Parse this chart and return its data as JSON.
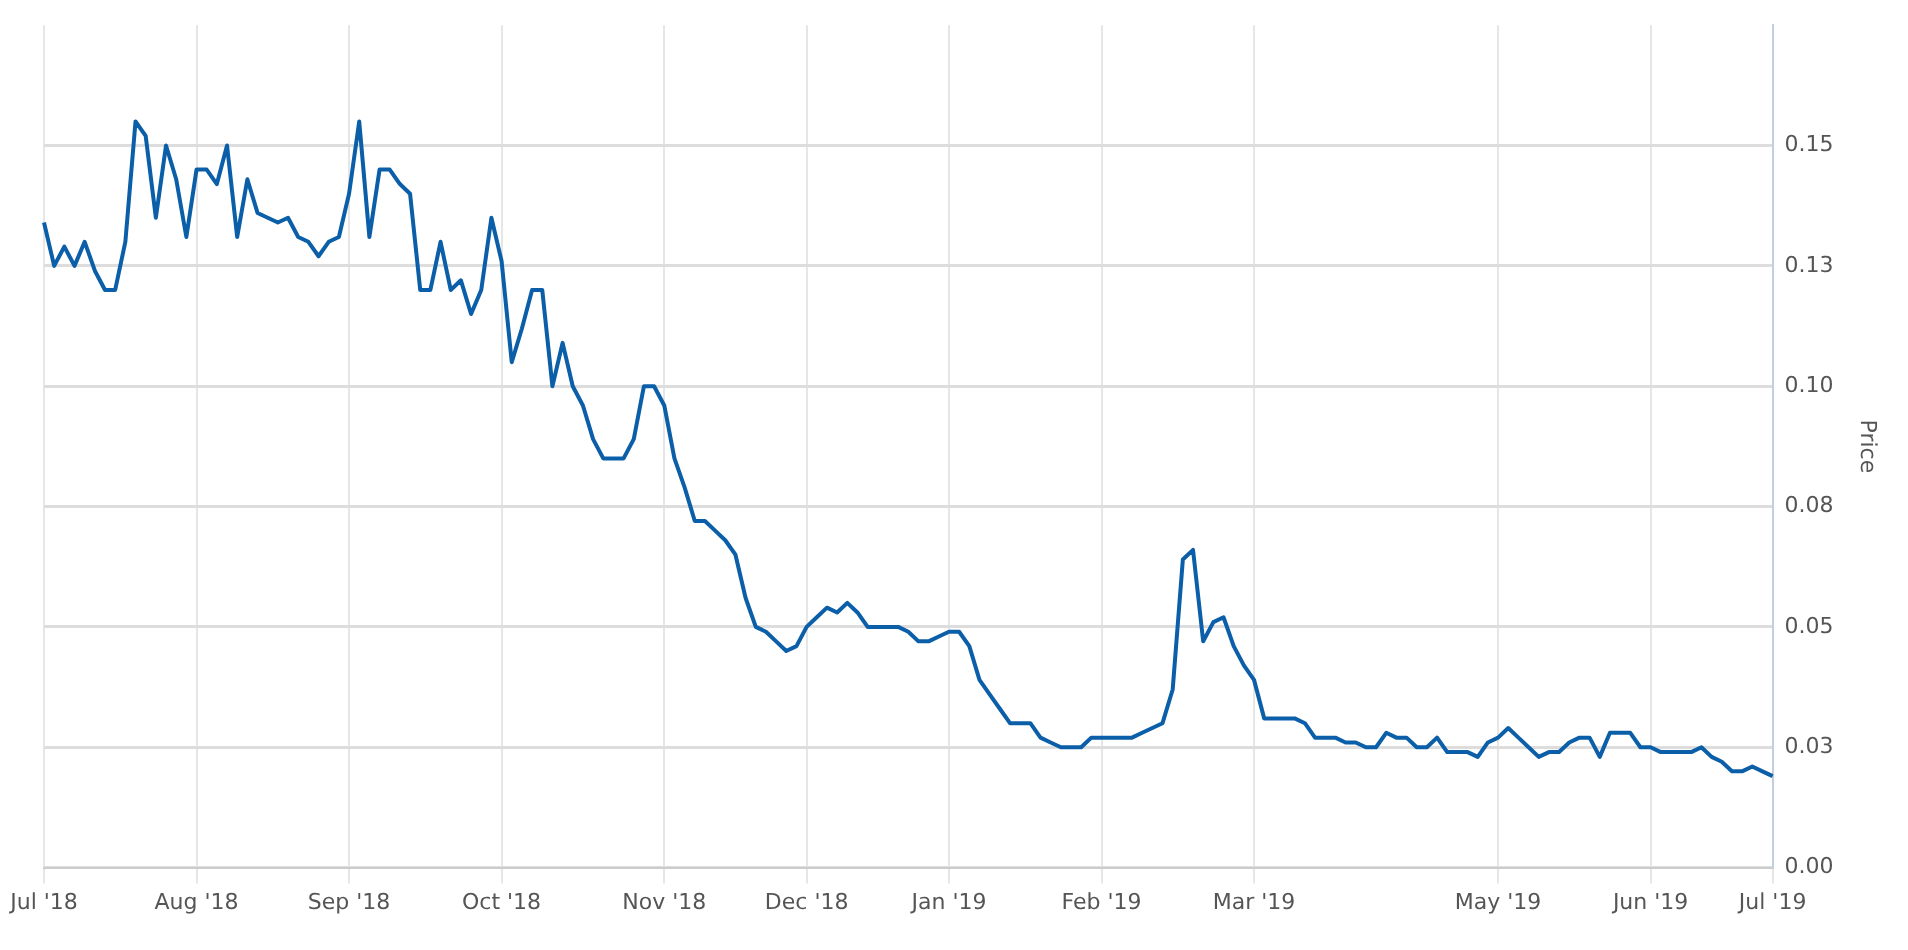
{
  "chart_data": {
    "type": "line",
    "ylabel": "Price",
    "categories": [
      "Jul '18",
      null,
      null,
      null,
      null,
      null,
      null,
      null,
      null,
      null,
      null,
      null,
      null,
      null,
      null,
      "Aug '18",
      null,
      null,
      null,
      null,
      null,
      null,
      null,
      null,
      null,
      null,
      null,
      null,
      null,
      null,
      "Sep '18",
      null,
      null,
      null,
      null,
      null,
      null,
      null,
      null,
      null,
      null,
      null,
      null,
      null,
      null,
      "Oct '18",
      null,
      null,
      null,
      null,
      null,
      null,
      null,
      null,
      null,
      null,
      null,
      null,
      null,
      null,
      null,
      "Nov '18",
      null,
      null,
      null,
      null,
      null,
      null,
      null,
      null,
      null,
      null,
      null,
      null,
      null,
      "Dec '18",
      null,
      null,
      null,
      null,
      null,
      null,
      null,
      null,
      null,
      null,
      null,
      null,
      null,
      "Jan '19",
      null,
      null,
      null,
      null,
      null,
      null,
      null,
      null,
      null,
      null,
      null,
      null,
      null,
      null,
      "Feb '19",
      null,
      null,
      null,
      null,
      null,
      null,
      null,
      null,
      null,
      null,
      null,
      null,
      null,
      null,
      "Mar '19",
      null,
      null,
      null,
      null,
      null,
      null,
      null,
      null,
      null,
      null,
      null,
      null,
      null,
      null,
      null,
      null,
      null,
      null,
      null,
      null,
      null,
      null,
      null,
      "May '19",
      null,
      null,
      null,
      null,
      null,
      null,
      null,
      null,
      null,
      null,
      null,
      null,
      null,
      null,
      "Jun '19",
      null,
      null,
      null,
      null,
      null,
      null,
      null,
      null,
      null,
      null,
      null,
      "Jul '19"
    ],
    "series": [
      {
        "color": "#0b5ea8",
        "values": [
          0.134,
          0.125,
          0.129,
          0.125,
          0.13,
          0.124,
          0.12,
          0.12,
          0.13,
          0.155,
          0.152,
          0.135,
          0.15,
          0.143,
          0.131,
          0.145,
          0.145,
          0.142,
          0.15,
          0.131,
          0.143,
          0.136,
          0.135,
          0.134,
          0.135,
          0.131,
          0.13,
          0.127,
          0.13,
          0.131,
          0.14,
          0.155,
          0.131,
          0.145,
          0.145,
          0.142,
          0.14,
          0.12,
          0.12,
          0.13,
          0.12,
          0.122,
          0.115,
          0.12,
          0.135,
          0.126,
          0.105,
          0.112,
          0.12,
          0.12,
          0.1,
          0.109,
          0.1,
          0.096,
          0.089,
          0.085,
          0.085,
          0.085,
          0.089,
          0.1,
          0.1,
          0.096,
          0.085,
          0.079,
          0.072,
          0.072,
          0.07,
          0.068,
          0.065,
          0.056,
          0.05,
          0.049,
          0.047,
          0.045,
          0.046,
          0.05,
          0.052,
          0.054,
          0.053,
          0.055,
          0.053,
          0.05,
          0.05,
          0.05,
          0.05,
          0.049,
          0.047,
          0.047,
          0.048,
          0.049,
          0.049,
          0.046,
          0.039,
          0.036,
          0.033,
          0.03,
          0.03,
          0.03,
          0.027,
          0.026,
          0.025,
          0.025,
          0.025,
          0.027,
          0.027,
          0.027,
          0.027,
          0.027,
          0.028,
          0.029,
          0.03,
          0.037,
          0.064,
          0.066,
          0.047,
          0.051,
          0.052,
          0.046,
          0.042,
          0.039,
          0.031,
          0.031,
          0.031,
          0.031,
          0.03,
          0.027,
          0.027,
          0.027,
          0.026,
          0.026,
          0.025,
          0.025,
          0.028,
          0.027,
          0.027,
          0.025,
          0.025,
          0.027,
          0.024,
          0.024,
          0.024,
          0.023,
          0.026,
          0.027,
          0.029,
          0.027,
          0.025,
          0.023,
          0.024,
          0.024,
          0.026,
          0.027,
          0.027,
          0.023,
          0.028,
          0.028,
          0.028,
          0.025,
          0.025,
          0.024,
          0.024,
          0.024,
          0.024,
          0.025,
          0.023,
          0.022,
          0.02,
          0.02,
          0.021,
          0.02,
          0.019
        ]
      }
    ],
    "ylim": [
      0,
      0.175
    ],
    "yticks": [
      {
        "value": 0,
        "label": "0.00"
      },
      {
        "value": 0.025,
        "label": "0.03"
      },
      {
        "value": 0.05,
        "label": "0.05"
      },
      {
        "value": 0.075,
        "label": "0.08"
      },
      {
        "value": 0.1,
        "label": "0.10"
      },
      {
        "value": 0.125,
        "label": "0.13"
      },
      {
        "value": 0.15,
        "label": "0.15"
      }
    ],
    "grid": true,
    "legend": false,
    "marker": "none",
    "line_style": "solid"
  }
}
